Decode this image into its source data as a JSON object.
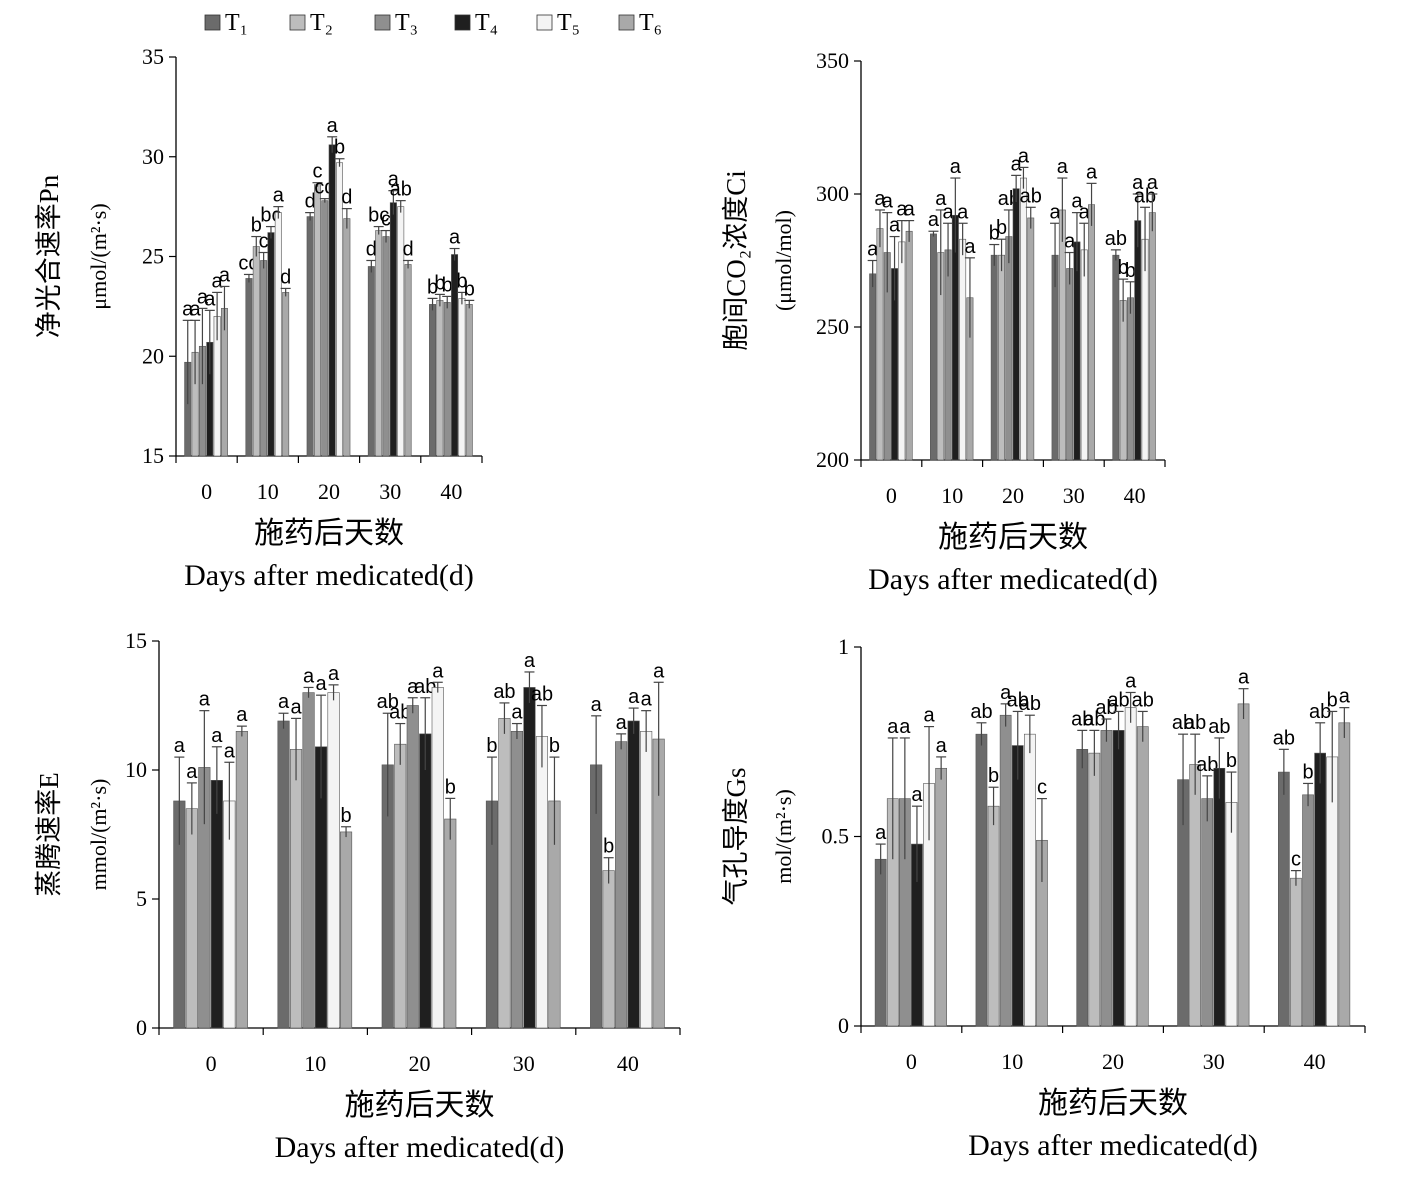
{
  "legend": {
    "items": [
      {
        "name": "T₁",
        "color": "#6b6b6b"
      },
      {
        "name": "T₂",
        "color": "#bdbdbd"
      },
      {
        "name": "T₃",
        "color": "#8f8f8f"
      },
      {
        "name": "T₄",
        "color": "#1f1f1f"
      },
      {
        "name": "T₅",
        "color": "#f4f4f4"
      },
      {
        "name": "T₆",
        "color": "#a9a9a9"
      }
    ]
  },
  "chart_data": [
    {
      "type": "bar",
      "title": "",
      "ylabel_cn": "净光合速率Pn",
      "ylabel_unit": "μmol/(m²·s)",
      "xlabel_cn": "施药后天数",
      "xlabel_en": "Days after medicated(d)",
      "ylim": [
        15,
        35
      ],
      "yticks": [
        15,
        20,
        25,
        30,
        35
      ],
      "categories": [
        "0",
        "10",
        "20",
        "30",
        "40"
      ],
      "series": [
        {
          "name": "T₁",
          "values": [
            19.7,
            23.9,
            27.0,
            24.5,
            22.6
          ],
          "errors": [
            2.1,
            0.2,
            0.2,
            0.3,
            0.3
          ],
          "letters": [
            "a",
            "cd",
            "d",
            "d",
            "b"
          ]
        },
        {
          "name": "T₂",
          "values": [
            20.2,
            25.5,
            28.6,
            26.3,
            22.8
          ],
          "errors": [
            1.6,
            0.5,
            0.1,
            0.2,
            0.3
          ],
          "letters": [
            "a",
            "b",
            "c",
            "bc",
            "b"
          ]
        },
        {
          "name": "T₃",
          "values": [
            20.5,
            24.8,
            27.8,
            26.0,
            22.7
          ],
          "errors": [
            1.9,
            0.4,
            0.1,
            0.3,
            0.3
          ],
          "letters": [
            "a",
            "c",
            "cd",
            "c",
            "b"
          ]
        },
        {
          "name": "T₄",
          "values": [
            20.7,
            26.2,
            30.6,
            27.7,
            25.1
          ],
          "errors": [
            1.6,
            0.3,
            0.4,
            0.6,
            0.3
          ],
          "letters": [
            "a",
            "bc",
            "a",
            "a",
            "a"
          ]
        },
        {
          "name": "T₅",
          "values": [
            22.0,
            27.2,
            29.7,
            27.5,
            22.9
          ],
          "errors": [
            1.2,
            0.3,
            0.2,
            0.3,
            0.3
          ],
          "letters": [
            "a",
            "a",
            "b",
            "ab",
            "b"
          ]
        },
        {
          "name": "T₆",
          "values": [
            22.4,
            23.2,
            26.9,
            24.6,
            22.6
          ],
          "errors": [
            1.1,
            0.2,
            0.5,
            0.2,
            0.2
          ],
          "letters": [
            "a",
            "d",
            "d",
            "d",
            "b"
          ]
        }
      ]
    },
    {
      "type": "bar",
      "title": "",
      "ylabel_cn": "胞间CO₂浓度Ci",
      "ylabel_unit": "(μmol/mol)",
      "xlabel_cn": "施药后天数",
      "xlabel_en": "Days after medicated(d)",
      "ylim": [
        200,
        350
      ],
      "yticks": [
        200,
        250,
        300,
        350
      ],
      "categories": [
        "0",
        "10",
        "20",
        "30",
        "40"
      ],
      "series": [
        {
          "name": "T₁",
          "values": [
            270,
            285,
            277,
            277,
            277
          ],
          "errors": [
            5,
            1,
            4,
            12,
            2
          ],
          "letters": [
            "a",
            "a",
            "b",
            "a",
            "ab"
          ]
        },
        {
          "name": "T₂",
          "values": [
            287,
            278,
            277,
            294,
            260
          ],
          "errors": [
            7,
            16,
            6,
            12,
            8
          ],
          "letters": [
            "a",
            "a",
            "b",
            "a",
            "b"
          ]
        },
        {
          "name": "T₃",
          "values": [
            278,
            279,
            284,
            272,
            261
          ],
          "errors": [
            15,
            10,
            10,
            6,
            6
          ],
          "letters": [
            "a",
            "a",
            "ab",
            "a",
            "b"
          ]
        },
        {
          "name": "T₄",
          "values": [
            272,
            292,
            302,
            282,
            290
          ],
          "errors": [
            12,
            14,
            5,
            11,
            10
          ],
          "letters": [
            "a",
            "a",
            "a",
            "a",
            "a"
          ]
        },
        {
          "name": "T₅",
          "values": [
            282,
            283,
            306,
            279,
            283
          ],
          "errors": [
            8,
            6,
            4,
            10,
            12
          ],
          "letters": [
            "a",
            "a",
            "a",
            "a",
            "ab"
          ]
        },
        {
          "name": "T₆",
          "values": [
            286,
            261,
            291,
            296,
            293
          ],
          "errors": [
            4,
            15,
            4,
            8,
            7
          ],
          "letters": [
            "a",
            "a",
            "ab",
            "a",
            "a"
          ]
        }
      ]
    },
    {
      "type": "bar",
      "title": "",
      "ylabel_cn": "蒸腾速率E",
      "ylabel_unit": "mmol/(m²·s)",
      "xlabel_cn": "施药后天数",
      "xlabel_en": "Days after medicated(d)",
      "ylim": [
        0,
        15
      ],
      "yticks": [
        0,
        5,
        10,
        15
      ],
      "categories": [
        "0",
        "10",
        "20",
        "30",
        "40"
      ],
      "series": [
        {
          "name": "T₁",
          "values": [
            8.8,
            11.9,
            10.2,
            8.8,
            10.2
          ],
          "errors": [
            1.7,
            0.3,
            2.0,
            1.7,
            1.9
          ],
          "letters": [
            "a",
            "a",
            "ab",
            "b",
            "a"
          ]
        },
        {
          "name": "T₂",
          "values": [
            8.5,
            10.8,
            11.0,
            12.0,
            6.1
          ],
          "errors": [
            1.0,
            1.2,
            0.8,
            0.6,
            0.5
          ],
          "letters": [
            "a",
            "a",
            "ab",
            "ab",
            "b"
          ]
        },
        {
          "name": "T₃",
          "values": [
            10.1,
            13.0,
            12.5,
            11.5,
            11.1
          ],
          "errors": [
            2.2,
            0.2,
            0.3,
            0.3,
            0.3
          ],
          "letters": [
            "a",
            "a",
            "a",
            "a",
            "a"
          ]
        },
        {
          "name": "T₄",
          "values": [
            9.6,
            10.9,
            11.4,
            13.2,
            11.9
          ],
          "errors": [
            1.3,
            2.0,
            1.4,
            0.6,
            0.5
          ],
          "letters": [
            "a",
            "a",
            "ab",
            "a",
            "a"
          ]
        },
        {
          "name": "T₅",
          "values": [
            8.8,
            13.0,
            13.2,
            11.3,
            11.5
          ],
          "errors": [
            1.5,
            0.3,
            0.2,
            1.2,
            0.8
          ],
          "letters": [
            "a",
            "a",
            "a",
            "ab",
            "a"
          ]
        },
        {
          "name": "T₆",
          "values": [
            11.5,
            7.6,
            8.1,
            8.8,
            11.2
          ],
          "errors": [
            0.2,
            0.2,
            0.8,
            1.7,
            2.2
          ],
          "letters": [
            "a",
            "b",
            "b",
            "b",
            "a"
          ]
        }
      ]
    },
    {
      "type": "bar",
      "title": "",
      "ylabel_cn": "气孔导度Gs",
      "ylabel_unit": "mol/(m²·s)",
      "xlabel_cn": "施药后天数",
      "xlabel_en": "Days after medicated(d)",
      "ylim": [
        0,
        1
      ],
      "yticks": [
        0,
        0.5,
        1
      ],
      "categories": [
        "0",
        "10",
        "20",
        "30",
        "40"
      ],
      "series": [
        {
          "name": "T₁",
          "values": [
            0.44,
            0.77,
            0.73,
            0.65,
            0.67
          ],
          "errors": [
            0.04,
            0.03,
            0.05,
            0.12,
            0.06
          ],
          "letters": [
            "a",
            "ab",
            "ab",
            "ab",
            "ab"
          ]
        },
        {
          "name": "T₂",
          "values": [
            0.6,
            0.58,
            0.72,
            0.69,
            0.39
          ],
          "errors": [
            0.16,
            0.05,
            0.06,
            0.08,
            0.02
          ],
          "letters": [
            "a",
            "b",
            "ab",
            "ab",
            "c"
          ]
        },
        {
          "name": "T₃",
          "values": [
            0.6,
            0.82,
            0.78,
            0.6,
            0.61
          ],
          "errors": [
            0.16,
            0.03,
            0.03,
            0.06,
            0.03
          ],
          "letters": [
            "a",
            "a",
            "ab",
            "ab",
            "b"
          ]
        },
        {
          "name": "T₄",
          "values": [
            0.48,
            0.74,
            0.78,
            0.68,
            0.72
          ],
          "errors": [
            0.1,
            0.09,
            0.05,
            0.08,
            0.08
          ],
          "letters": [
            "a",
            "ab",
            "ab",
            "ab",
            "ab"
          ]
        },
        {
          "name": "T₅",
          "values": [
            0.64,
            0.77,
            0.84,
            0.59,
            0.71
          ],
          "errors": [
            0.15,
            0.05,
            0.04,
            0.08,
            0.12
          ],
          "letters": [
            "a",
            "ab",
            "a",
            "b",
            "b"
          ]
        },
        {
          "name": "T₆",
          "values": [
            0.68,
            0.49,
            0.79,
            0.85,
            0.8
          ],
          "errors": [
            0.03,
            0.11,
            0.04,
            0.04,
            0.04
          ],
          "letters": [
            "a",
            "c",
            "ab",
            "a",
            "a"
          ]
        }
      ]
    }
  ]
}
